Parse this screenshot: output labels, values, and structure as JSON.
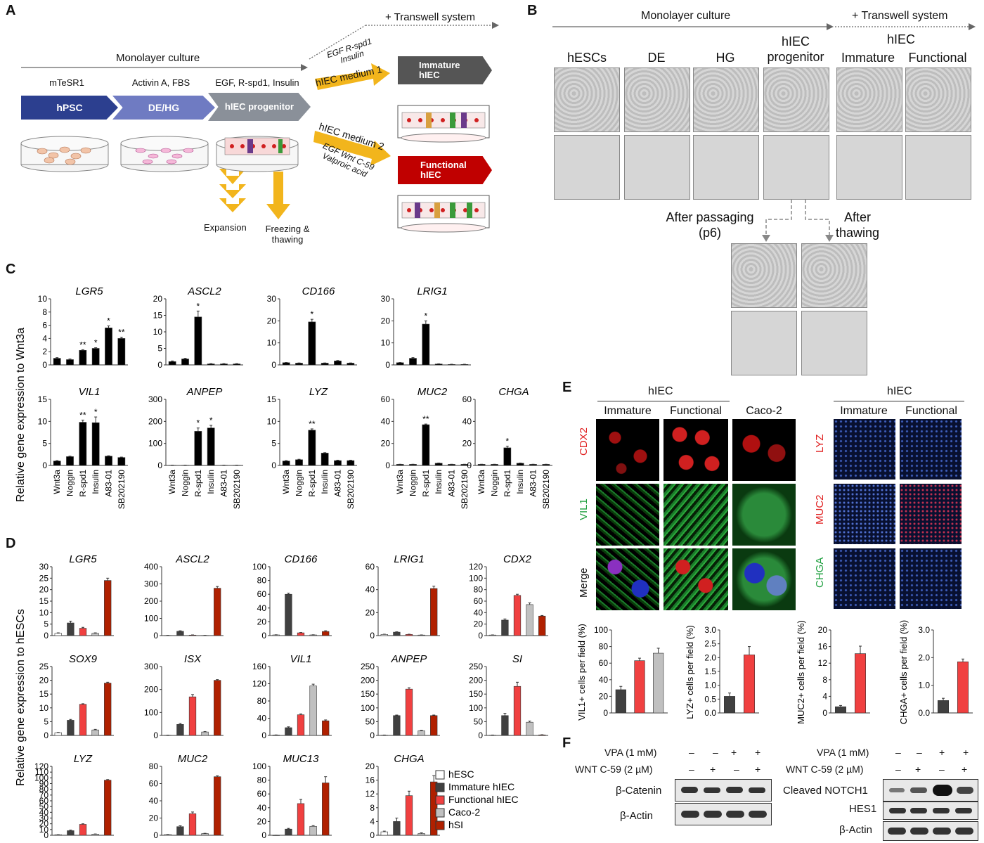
{
  "panel_letters": {
    "A": "A",
    "B": "B",
    "C": "C",
    "D": "D",
    "E": "E",
    "F": "F"
  },
  "panelA": {
    "transwell": "+ Transwell system",
    "monolayer": "Monolayer culture",
    "media": [
      "mTeSR1",
      "Activin A, FBS",
      "EGF, R-spd1, Insulin"
    ],
    "stages": [
      "hPSC",
      "DE/HG",
      "hIEC progenitor"
    ],
    "medium1_factors": "EGF R-spd1 Insulin",
    "medium1": "hIEC medium 1",
    "medium2": "hIEC medium 2",
    "medium2_factors": "EGF Wnt C-59 Valproic acid",
    "immature": "Immature hIEC",
    "functional": "Functional hIEC",
    "expansion": "Expansion",
    "freezing": "Freezing & thawing"
  },
  "panelB": {
    "monolayer": "Monolayer culture",
    "transwell": "+ Transwell system",
    "hiec": "hIEC",
    "columns": [
      "hESCs",
      "DE",
      "HG",
      "hIEC progenitor",
      "Immature",
      "Functional"
    ],
    "after_passaging": "After passaging (p6)",
    "after_thawing": "After thawing"
  },
  "panelE": {
    "hiec_left": "hIEC",
    "hiec_right": "hIEC",
    "cols_left": [
      "Immature",
      "Functional",
      "Caco-2"
    ],
    "rows_left": [
      "CDX2",
      "VIL1",
      "Merge"
    ],
    "cols_right": [
      "Immature",
      "Functional"
    ],
    "rows_right": [
      "LYZ",
      "MUC2",
      "CHGA"
    ],
    "row_colors": {
      "CDX2": "#e02020",
      "VIL1": "#20a040",
      "Merge": "#111111",
      "LYZ": "#e02020",
      "MUC2": "#e02020",
      "CHGA": "#20a040"
    }
  },
  "panelF": {
    "left_treat": [
      "VPA (1 mM)",
      "WNT C-59 (2 µM)"
    ],
    "left_signs": [
      [
        "–",
        "–",
        "+",
        "+"
      ],
      [
        "–",
        "+",
        "–",
        "+"
      ]
    ],
    "left_rows": [
      "β-Catenin",
      "β-Actin"
    ],
    "right_treat": [
      "VPA (1 mM)",
      "WNT C-59 (2 µM)"
    ],
    "right_signs": [
      [
        "–",
        "–",
        "+",
        "+"
      ],
      [
        "–",
        "+",
        "–",
        "+"
      ]
    ],
    "right_rows": [
      "Cleaved NOTCH1",
      "HES1",
      "β-Actin"
    ]
  },
  "chart_data": [
    {
      "id": "C",
      "type": "bar",
      "ylabel": "Relative gene expression to Wnt3a",
      "categories": [
        "Wnt3a",
        "Noggin",
        "R-spd1",
        "Insulin",
        "A83-01",
        "SB202190"
      ],
      "bar_color": "#000000",
      "charts": [
        {
          "title": "LGR5",
          "ymax": 10,
          "ticks": [
            0,
            2,
            4,
            6,
            8,
            10
          ],
          "values": [
            1,
            0.8,
            2.2,
            2.5,
            5.6,
            4.0
          ],
          "errors": [
            0.1,
            0.1,
            0.1,
            0.1,
            0.3,
            0.2
          ],
          "sig": [
            "",
            "",
            "**",
            "*",
            "*",
            "**"
          ]
        },
        {
          "title": "ASCL2",
          "ymax": 20,
          "ticks": [
            0,
            5,
            10,
            15,
            20
          ],
          "values": [
            1,
            1.8,
            14.5,
            0.3,
            0.3,
            0.3
          ],
          "errors": [
            0.2,
            0.2,
            1.8,
            0.1,
            0.1,
            0.1
          ],
          "sig": [
            "",
            "",
            "*",
            "",
            "",
            ""
          ]
        },
        {
          "title": "CD166",
          "ymax": 30,
          "ticks": [
            0,
            10,
            20,
            30
          ],
          "values": [
            1,
            0.8,
            19.5,
            0.8,
            1.8,
            0.8
          ],
          "errors": [
            0.1,
            0.1,
            1.2,
            0.1,
            0.2,
            0.1
          ],
          "sig": [
            "",
            "",
            "*",
            "",
            "",
            ""
          ]
        },
        {
          "title": "LRIG1",
          "ymax": 30,
          "ticks": [
            0,
            10,
            20,
            30
          ],
          "values": [
            1,
            3,
            18.5,
            0.4,
            0.2,
            0.2
          ],
          "errors": [
            0.1,
            0.3,
            1.5,
            0.1,
            0.1,
            0.1
          ],
          "sig": [
            "",
            "",
            "*",
            "",
            "",
            ""
          ]
        },
        {
          "title": "VIL1",
          "ymax": 15,
          "ticks": [
            0,
            5,
            10,
            15
          ],
          "values": [
            1,
            2,
            9.8,
            9.7,
            2.1,
            1.8
          ],
          "errors": [
            0.1,
            0.1,
            0.5,
            1.3,
            0.1,
            0.1
          ],
          "sig": [
            "",
            "",
            "**",
            "*",
            "",
            ""
          ]
        },
        {
          "title": "ANPEP",
          "ymax": 300,
          "ticks": [
            0,
            100,
            200,
            300
          ],
          "values": [
            1,
            1,
            155,
            170,
            1,
            1
          ],
          "errors": [
            0.5,
            0.5,
            15,
            12,
            0.5,
            0.5
          ],
          "sig": [
            "",
            "",
            "*",
            "*",
            "",
            ""
          ]
        },
        {
          "title": "LYZ",
          "ymax": 15,
          "ticks": [
            0,
            5,
            10,
            15
          ],
          "values": [
            1,
            1.3,
            8.0,
            2.8,
            1.1,
            1.1
          ],
          "errors": [
            0.1,
            0.1,
            0.3,
            0.1,
            0.1,
            0.1
          ],
          "sig": [
            "",
            "",
            "**",
            "",
            "",
            ""
          ]
        },
        {
          "title": "MUC2",
          "ymax": 60,
          "ticks": [
            0,
            20,
            40,
            60
          ],
          "values": [
            1,
            1,
            37,
            2,
            1,
            1
          ],
          "errors": [
            0.1,
            0.1,
            0.6,
            0.2,
            0.1,
            0.1
          ],
          "sig": [
            "",
            "",
            "**",
            "",
            "",
            ""
          ]
        },
        {
          "title": "CHGA",
          "ymax": 60,
          "ticks": [
            0,
            20,
            40,
            60
          ],
          "values": [
            1,
            1,
            16,
            2,
            1,
            1
          ],
          "errors": [
            0.1,
            0.1,
            1.5,
            0.2,
            0.1,
            0.1
          ],
          "sig": [
            "",
            "",
            "*",
            "",
            "",
            ""
          ]
        }
      ]
    },
    {
      "id": "D",
      "type": "bar",
      "ylabel": "Relative gene expression to hESCs",
      "series_names": [
        "hESC",
        "Immature hIEC",
        "Functional hIEC",
        "Caco-2",
        "hSI"
      ],
      "series_colors": [
        "#ffffff",
        "#404040",
        "#f04040",
        "#c0c0c0",
        "#b02000"
      ],
      "charts": [
        {
          "title": "LGR5",
          "ymax": 30,
          "ticks": [
            0,
            5,
            10,
            15,
            20,
            25,
            30
          ],
          "values": [
            1,
            5.5,
            3.2,
            1,
            24
          ],
          "errors": [
            0.2,
            0.8,
            0.4,
            0.2,
            1
          ]
        },
        {
          "title": "ASCL2",
          "ymax": 400,
          "ticks": [
            0,
            100,
            200,
            300,
            400
          ],
          "values": [
            1,
            25,
            3,
            1,
            275
          ],
          "errors": [
            0.5,
            3,
            1,
            0.5,
            10
          ]
        },
        {
          "title": "CD166",
          "ymax": 100,
          "ticks": [
            0,
            20,
            40,
            60,
            80,
            100
          ],
          "values": [
            1,
            60,
            4,
            1,
            6
          ],
          "errors": [
            0.2,
            1.5,
            0.5,
            0.2,
            1
          ]
        },
        {
          "title": "LRIG1",
          "ymax": 60,
          "ticks": [
            0,
            20,
            40,
            60
          ],
          "values": [
            1,
            3,
            1,
            0.5,
            41
          ],
          "errors": [
            0.2,
            0.3,
            0.2,
            0.1,
            2
          ]
        },
        {
          "title": "CDX2",
          "ymax": 120,
          "ticks": [
            0,
            20,
            40,
            60,
            80,
            100,
            120
          ],
          "values": [
            1,
            27,
            70,
            54,
            34
          ],
          "errors": [
            0.2,
            2,
            2,
            3,
            1
          ]
        },
        {
          "title": "SOX9",
          "ymax": 25,
          "ticks": [
            0,
            5,
            10,
            15,
            20,
            25
          ],
          "values": [
            1,
            5.5,
            11.3,
            2,
            19
          ],
          "errors": [
            0.1,
            0.3,
            0.2,
            0.2,
            0.3
          ]
        },
        {
          "title": "ISX",
          "ymax": 300,
          "ticks": [
            0,
            100,
            200,
            300
          ],
          "values": [
            1,
            48,
            168,
            15,
            240
          ],
          "errors": [
            0.5,
            4,
            10,
            2,
            3
          ]
        },
        {
          "title": "VIL1",
          "ymax": 160,
          "ticks": [
            0,
            40,
            80,
            120,
            160
          ],
          "values": [
            1,
            18,
            48,
            115,
            34
          ],
          "errors": [
            0.2,
            2,
            2,
            4,
            2
          ]
        },
        {
          "title": "ANPEP",
          "ymax": 250,
          "ticks": [
            0,
            50,
            100,
            150,
            200,
            250
          ],
          "values": [
            1,
            72,
            168,
            17,
            72
          ],
          "errors": [
            0.5,
            2,
            5,
            2,
            2
          ]
        },
        {
          "title": "SI",
          "ymax": 250,
          "ticks": [
            0,
            50,
            100,
            150,
            200,
            250
          ],
          "values": [
            1,
            72,
            178,
            48,
            2
          ],
          "errors": [
            0.5,
            8,
            15,
            4,
            0.5
          ]
        },
        {
          "title": "LYZ",
          "ymax": 120,
          "ticks": [
            0,
            10,
            20,
            30,
            40,
            50,
            60,
            70,
            80,
            90,
            100,
            110,
            120
          ],
          "values": [
            1,
            8,
            19,
            2,
            96
          ],
          "errors": [
            0.2,
            1,
            1,
            0.3,
            1
          ]
        },
        {
          "title": "MUC2",
          "ymax": 80,
          "ticks": [
            0,
            20,
            40,
            60,
            80
          ],
          "values": [
            1,
            10,
            25,
            2,
            68
          ],
          "errors": [
            0.2,
            1,
            2,
            0.3,
            1
          ]
        },
        {
          "title": "MUC13",
          "ymax": 100,
          "ticks": [
            0,
            20,
            40,
            60,
            80,
            100
          ],
          "values": [
            0,
            9,
            46,
            13,
            76
          ],
          "errors": [
            0.1,
            1,
            6,
            1,
            9
          ]
        },
        {
          "title": "CHGA",
          "ymax": 20,
          "ticks": [
            0,
            4,
            8,
            12,
            16,
            20
          ],
          "values": [
            1,
            4,
            11.5,
            0.5,
            15.5
          ],
          "errors": [
            0.2,
            1,
            1.3,
            0.2,
            1.8
          ]
        }
      ]
    },
    {
      "id": "E",
      "type": "bar",
      "charts": [
        {
          "ylabel": "VIL1+ cells per field (%)",
          "ymax": 100,
          "ticks": [
            0,
            20,
            40,
            60,
            80,
            100
          ],
          "values": [
            28,
            63,
            72
          ],
          "errors": [
            4,
            3,
            6
          ],
          "colors": [
            "#404040",
            "#f04040",
            "#c0c0c0"
          ]
        },
        {
          "ylabel": "LYZ+ cells per field (%)",
          "ymax": 3.0,
          "ticks": [
            "0.0",
            "0.5",
            "1.0",
            "1.5",
            "2.0",
            "2.5",
            "3.0"
          ],
          "values": [
            0.6,
            2.1
          ],
          "errors": [
            0.12,
            0.3
          ],
          "colors": [
            "#404040",
            "#f04040"
          ]
        },
        {
          "ylabel": "MUC2+ cells per field (%)",
          "ymax": 20,
          "ticks": [
            0,
            4,
            8,
            12,
            16,
            20
          ],
          "values": [
            1.5,
            14.3
          ],
          "errors": [
            0.3,
            1.8
          ],
          "colors": [
            "#404040",
            "#f04040"
          ]
        },
        {
          "ylabel": "CHGA+ cells per field (%)",
          "ymax": 3.0,
          "ticks": [
            "0.0",
            "1.0",
            "2.0",
            "3.0"
          ],
          "values": [
            0.45,
            1.85
          ],
          "errors": [
            0.08,
            0.1
          ],
          "colors": [
            "#404040",
            "#f04040"
          ]
        }
      ]
    }
  ]
}
